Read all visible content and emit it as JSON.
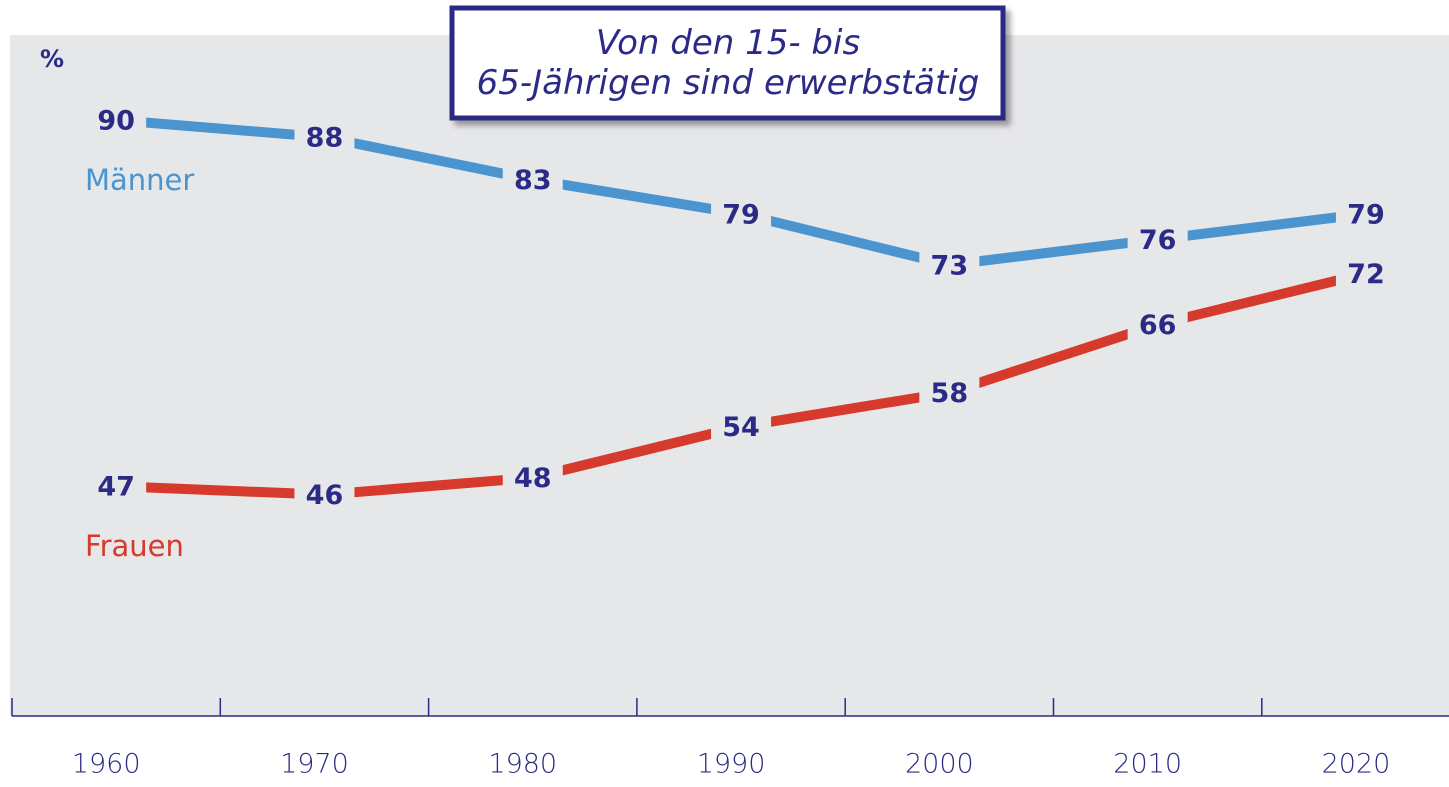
{
  "chart_data": {
    "type": "line",
    "title": "Von den 15- bis 65-Jährigen sind erwerbstätig",
    "y_label": "%",
    "categories": [
      "1960",
      "1970",
      "1980",
      "1990",
      "2000",
      "2010",
      "2020"
    ],
    "series": [
      {
        "name": "Männer",
        "color": "#4a94d0",
        "values": [
          90,
          88,
          83,
          79,
          73,
          76,
          79
        ]
      },
      {
        "name": "Frauen",
        "color": "#d63a2c",
        "values": [
          47,
          46,
          48,
          54,
          58,
          66,
          72
        ]
      }
    ],
    "ylim": [
      20,
      100
    ],
    "grid": false
  }
}
